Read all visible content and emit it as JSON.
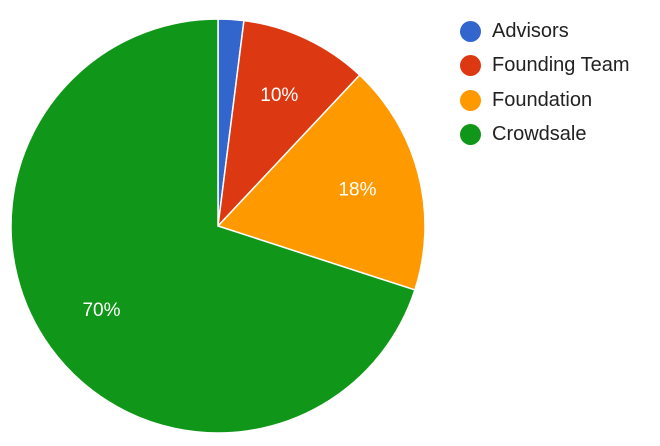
{
  "chart_data": {
    "type": "pie",
    "title": "",
    "legend": "right",
    "series": [
      {
        "name": "Advisors",
        "value": 2,
        "label": "",
        "color": "#3366cc"
      },
      {
        "name": "Founding Team",
        "value": 10,
        "label": "10%",
        "color": "#dc3912"
      },
      {
        "name": "Foundation",
        "value": 18,
        "label": "18%",
        "color": "#ff9900"
      },
      {
        "name": "Crowdsale",
        "value": 70,
        "label": "70%",
        "color": "#109618"
      }
    ]
  }
}
